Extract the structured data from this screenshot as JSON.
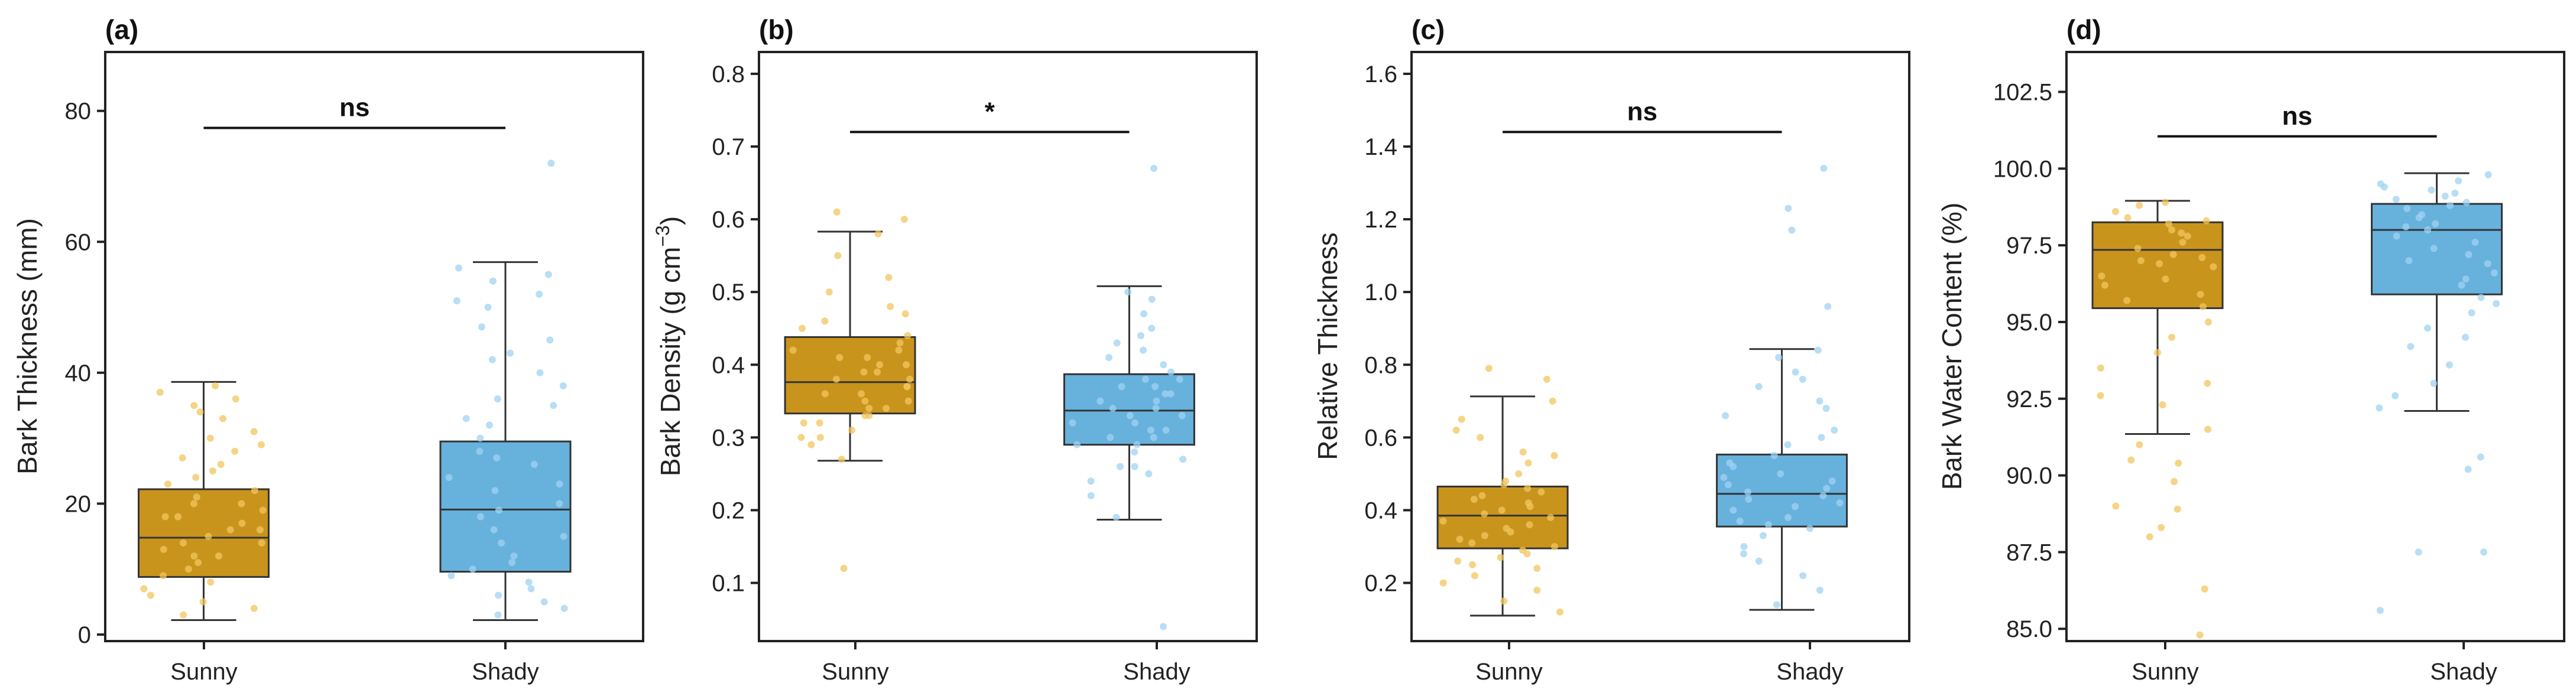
{
  "colors": {
    "sunny": "#C9941B",
    "shady": "#67B1DD",
    "sunny_point": "#F2C55E",
    "shady_point": "#9FD3F1",
    "line": "#333333"
  },
  "chart_data": [
    {
      "type": "box",
      "panel_label": "(a)",
      "ylabel": "Bark Thickness (mm)",
      "categories": [
        "Sunny",
        "Shady"
      ],
      "ylim": [
        -1,
        89
      ],
      "yticks": [
        0,
        20,
        40,
        60,
        80
      ],
      "tick_labels": [
        "0",
        "20",
        "40",
        "60",
        "80"
      ],
      "boxes": [
        {
          "name": "Sunny",
          "whislo": 2.2,
          "q1": 8.8,
          "med": 14.8,
          "q3": 22.2,
          "whishi": 38.6
        },
        {
          "name": "Shady",
          "whislo": 2.2,
          "q1": 9.6,
          "med": 19.1,
          "q3": 29.5,
          "whishi": 56.9
        }
      ],
      "significance": {
        "label": "ns",
        "y": 77.4
      },
      "points": [
        [
          4,
          6,
          8,
          10,
          11,
          12,
          13,
          14,
          15,
          16,
          17,
          18,
          19,
          20,
          21,
          22,
          24,
          26,
          27,
          28,
          30,
          33,
          35,
          37,
          3,
          5,
          7,
          9,
          12,
          14,
          16,
          18,
          20,
          23,
          25,
          29,
          31,
          34,
          36,
          38
        ],
        [
          3,
          4,
          5,
          6,
          7,
          8,
          10,
          12,
          14,
          16,
          18,
          20,
          22,
          24,
          26,
          28,
          30,
          33,
          35,
          38,
          40,
          42,
          45,
          47,
          50,
          52,
          54,
          55,
          56,
          72,
          9,
          11,
          15,
          19,
          23,
          27,
          32,
          36,
          43,
          51
        ]
      ]
    },
    {
      "type": "box",
      "panel_label": "(b)",
      "ylabel": "Bark Density (g cm",
      "ylabel_sup": "−3",
      "ylabel_close": ")",
      "categories": [
        "Sunny",
        "Shady"
      ],
      "ylim": [
        0.02,
        0.83
      ],
      "yticks": [
        0.1,
        0.2,
        0.3,
        0.4,
        0.5,
        0.6,
        0.7,
        0.8
      ],
      "tick_labels": [
        "0.1",
        "0.2",
        "0.3",
        "0.4",
        "0.5",
        "0.6",
        "0.7",
        "0.8"
      ],
      "boxes": [
        {
          "name": "Sunny",
          "whislo": 0.268,
          "q1": 0.333,
          "med": 0.376,
          "q3": 0.438,
          "whishi": 0.583
        },
        {
          "name": "Shady",
          "whislo": 0.187,
          "q1": 0.29,
          "med": 0.337,
          "q3": 0.387,
          "whishi": 0.508
        }
      ],
      "significance": {
        "label": "*",
        "y": 0.72
      },
      "points": [
        [
          0.12,
          0.27,
          0.29,
          0.3,
          0.31,
          0.32,
          0.33,
          0.34,
          0.35,
          0.36,
          0.37,
          0.38,
          0.39,
          0.4,
          0.41,
          0.42,
          0.43,
          0.44,
          0.45,
          0.47,
          0.5,
          0.52,
          0.55,
          0.58,
          0.6,
          0.61,
          0.34,
          0.36,
          0.38,
          0.4,
          0.42,
          0.35,
          0.37,
          0.39,
          0.41,
          0.3,
          0.33,
          0.46,
          0.48,
          0.32
        ],
        [
          0.04,
          0.19,
          0.22,
          0.24,
          0.25,
          0.26,
          0.27,
          0.28,
          0.29,
          0.3,
          0.31,
          0.32,
          0.33,
          0.34,
          0.35,
          0.36,
          0.37,
          0.38,
          0.39,
          0.4,
          0.41,
          0.42,
          0.43,
          0.45,
          0.47,
          0.49,
          0.5,
          0.67,
          0.3,
          0.32,
          0.34,
          0.36,
          0.38,
          0.29,
          0.31,
          0.33,
          0.35,
          0.37,
          0.44,
          0.26
        ]
      ]
    },
    {
      "type": "box",
      "panel_label": "(c)",
      "ylabel": "Relative Thickness",
      "categories": [
        "Sunny",
        "Shady"
      ],
      "ylim": [
        0.04,
        1.66
      ],
      "yticks": [
        0.2,
        0.4,
        0.6,
        0.8,
        1.0,
        1.2,
        1.4,
        1.6
      ],
      "tick_labels": [
        "0.2",
        "0.4",
        "0.6",
        "0.8",
        "1.0",
        "1.2",
        "1.4",
        "1.6"
      ],
      "boxes": [
        {
          "name": "Sunny",
          "whislo": 0.11,
          "q1": 0.295,
          "med": 0.385,
          "q3": 0.465,
          "whishi": 0.713
        },
        {
          "name": "Shady",
          "whislo": 0.126,
          "q1": 0.355,
          "med": 0.445,
          "q3": 0.553,
          "whishi": 0.843
        }
      ],
      "significance": {
        "label": "ns",
        "y": 1.44
      },
      "points": [
        [
          0.12,
          0.15,
          0.18,
          0.2,
          0.22,
          0.24,
          0.26,
          0.28,
          0.3,
          0.32,
          0.34,
          0.36,
          0.38,
          0.4,
          0.42,
          0.44,
          0.46,
          0.48,
          0.5,
          0.53,
          0.56,
          0.6,
          0.65,
          0.7,
          0.76,
          0.79,
          0.31,
          0.33,
          0.37,
          0.39,
          0.41,
          0.43,
          0.35,
          0.29,
          0.27,
          0.45,
          0.47,
          0.25,
          0.55,
          0.62
        ],
        [
          0.14,
          0.18,
          0.22,
          0.26,
          0.3,
          0.33,
          0.36,
          0.38,
          0.4,
          0.42,
          0.44,
          0.46,
          0.48,
          0.5,
          0.52,
          0.55,
          0.58,
          0.62,
          0.66,
          0.7,
          0.74,
          0.78,
          0.82,
          0.84,
          0.96,
          1.17,
          1.23,
          1.34,
          0.37,
          0.41,
          0.45,
          0.49,
          0.53,
          0.35,
          0.43,
          0.47,
          0.6,
          0.68,
          0.28,
          0.76
        ]
      ]
    },
    {
      "type": "box",
      "panel_label": "(d)",
      "ylabel": "Bark Water Content (%)",
      "categories": [
        "Sunny",
        "Shady"
      ],
      "ylim": [
        84.6,
        103.8
      ],
      "yticks": [
        85.0,
        87.5,
        90.0,
        92.5,
        95.0,
        97.5,
        100.0,
        102.5
      ],
      "tick_labels": [
        "85.0",
        "87.5",
        "90.0",
        "92.5",
        "95.0",
        "97.5",
        "100.0",
        "102.5"
      ],
      "boxes": [
        {
          "name": "Sunny",
          "whislo": 91.35,
          "q1": 95.45,
          "med": 97.35,
          "q3": 98.25,
          "whishi": 98.95
        },
        {
          "name": "Shady",
          "whislo": 92.1,
          "q1": 95.9,
          "med": 98.0,
          "q3": 98.85,
          "whishi": 99.85
        }
      ],
      "significance": {
        "label": "ns",
        "y": 101.05
      },
      "points": [
        [
          84.8,
          86.3,
          88.0,
          88.3,
          88.9,
          89.0,
          89.8,
          90.4,
          90.5,
          91.0,
          91.5,
          92.3,
          92.6,
          93.0,
          93.5,
          94.0,
          94.5,
          95.0,
          95.5,
          95.9,
          96.2,
          96.5,
          96.8,
          97.0,
          97.2,
          97.4,
          97.6,
          97.8,
          98.0,
          98.2,
          98.4,
          98.6,
          98.8,
          98.9,
          97.1,
          96.9,
          97.9,
          98.3,
          95.7,
          96.4
        ],
        [
          85.6,
          87.5,
          87.5,
          90.2,
          90.6,
          92.2,
          92.6,
          93.0,
          93.6,
          94.2,
          94.8,
          95.3,
          95.8,
          96.2,
          96.6,
          97.0,
          97.4,
          97.8,
          98.1,
          98.4,
          98.7,
          99.0,
          99.2,
          99.4,
          99.6,
          99.8,
          98.0,
          98.5,
          97.6,
          99.1,
          98.9,
          96.9,
          95.6,
          99.5,
          98.2,
          97.2,
          99.3,
          94.5,
          96.4,
          98.8
        ]
      ]
    }
  ]
}
